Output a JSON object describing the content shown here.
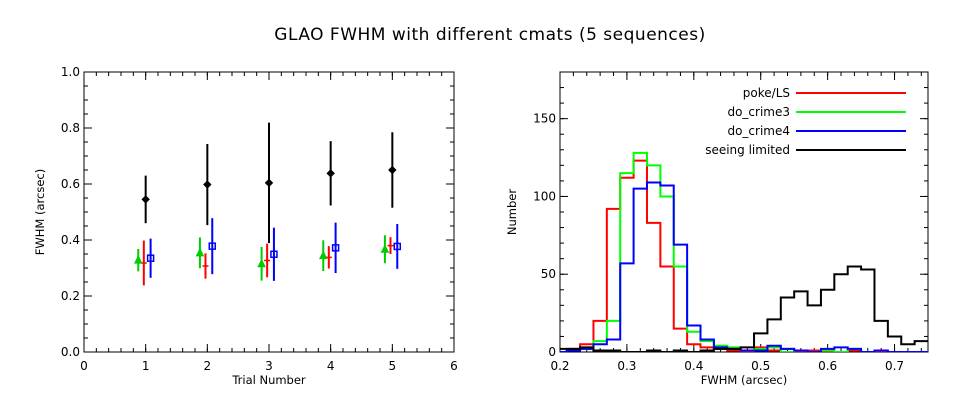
{
  "figure_title": "GLAO FWHM with different cmats (5 sequences)",
  "chart_data": [
    {
      "type": "scatter",
      "subtype": "errorbar",
      "title": "",
      "xlabel": "Trial Number",
      "ylabel": "FWHM (arcsec)",
      "xlim": [
        0,
        6
      ],
      "ylim": [
        0.0,
        1.0
      ],
      "xticks": [
        0,
        1,
        2,
        3,
        4,
        5,
        6
      ],
      "xtick_labels": [
        "0",
        "1",
        "2",
        "3",
        "4",
        "5",
        "6"
      ],
      "yticks": [
        0.0,
        0.2,
        0.4,
        0.6,
        0.8,
        1.0
      ],
      "ytick_labels": [
        "0.0",
        "0.2",
        "0.4",
        "0.6",
        "0.8",
        "1.0"
      ],
      "series": [
        {
          "name": "seeing limited",
          "color": "#000000",
          "marker": "diamond",
          "offset": 0.0,
          "x": [
            1,
            2,
            3,
            4,
            5
          ],
          "y": [
            0.545,
            0.598,
            0.604,
            0.638,
            0.65
          ],
          "yerr": [
            0.085,
            0.145,
            0.215,
            0.115,
            0.135
          ]
        },
        {
          "name": "poke/LS",
          "color": "#ff0000",
          "marker": "plus",
          "offset": -0.03,
          "x": [
            1,
            2,
            3,
            4,
            5
          ],
          "y": [
            0.318,
            0.307,
            0.327,
            0.338,
            0.38
          ],
          "yerr": [
            0.08,
            0.045,
            0.06,
            0.04,
            0.03
          ]
        },
        {
          "name": "do_crime3",
          "color": "#00cc00",
          "marker": "triangle",
          "offset": -0.12,
          "x": [
            1,
            2,
            3,
            4,
            5
          ],
          "y": [
            0.328,
            0.354,
            0.315,
            0.344,
            0.367
          ],
          "yerr": [
            0.04,
            0.055,
            0.06,
            0.055,
            0.05
          ]
        },
        {
          "name": "do_crime4",
          "color": "#0000ff",
          "marker": "square",
          "offset": 0.08,
          "x": [
            1,
            2,
            3,
            4,
            5
          ],
          "y": [
            0.335,
            0.378,
            0.349,
            0.372,
            0.377
          ],
          "yerr": [
            0.07,
            0.1,
            0.095,
            0.09,
            0.08
          ]
        }
      ]
    },
    {
      "type": "histogram",
      "title": "",
      "xlabel": "FWHM (arcsec)",
      "ylabel": "Number",
      "xlim": [
        0.2,
        0.75
      ],
      "ylim": [
        0,
        180
      ],
      "xticks": [
        0.2,
        0.3,
        0.4,
        0.5,
        0.6,
        0.7
      ],
      "xtick_labels": [
        "0.2",
        "0.3",
        "0.4",
        "0.5",
        "0.6",
        "0.7"
      ],
      "yticks": [
        0,
        50,
        100,
        150
      ],
      "ytick_labels": [
        "0",
        "50",
        "100",
        "150"
      ],
      "legend_position": "top-right",
      "bin_width": 0.02,
      "bin_edges_start": 0.19,
      "series": [
        {
          "name": "poke/LS",
          "color": "#ff0000",
          "values": [
            0,
            2,
            5,
            20,
            92,
            112,
            123,
            83,
            55,
            15,
            5,
            3,
            2,
            1,
            0,
            3,
            1,
            2,
            0,
            1,
            0,
            0,
            1,
            0,
            0,
            0,
            0,
            0
          ]
        },
        {
          "name": "do_crime3",
          "color": "#00ff00",
          "values": [
            0,
            1,
            2,
            7,
            20,
            115,
            128,
            120,
            100,
            55,
            13,
            7,
            4,
            3,
            1,
            2,
            3,
            0,
            1,
            0,
            1,
            0,
            2,
            0,
            1,
            0,
            0,
            0
          ]
        },
        {
          "name": "do_crime4",
          "color": "#0000ff",
          "values": [
            0,
            1,
            2,
            5,
            8,
            57,
            105,
            109,
            107,
            69,
            17,
            8,
            3,
            2,
            1,
            1,
            4,
            2,
            1,
            0,
            2,
            3,
            2,
            0,
            1,
            0,
            0,
            0
          ]
        },
        {
          "name": "seeing limited",
          "color": "#000000",
          "values": [
            2,
            2,
            3,
            1,
            1,
            0,
            0,
            1,
            0,
            1,
            0,
            1,
            2,
            2,
            3,
            12,
            21,
            35,
            39,
            30,
            40,
            50,
            55,
            53,
            20,
            10,
            5,
            7
          ]
        }
      ]
    }
  ]
}
